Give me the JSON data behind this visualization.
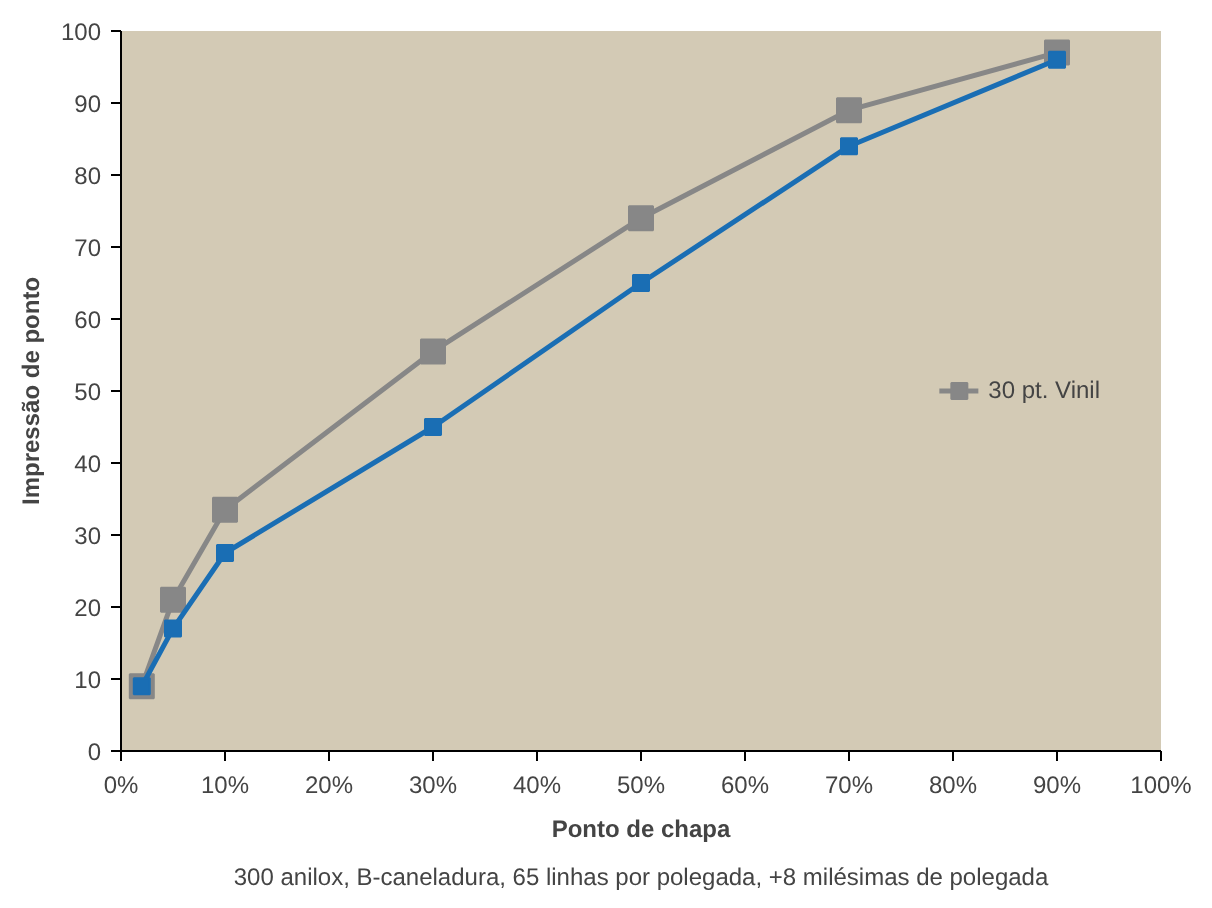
{
  "chart_data": {
    "type": "line",
    "xlabel": "Ponto de chapa",
    "ylabel": "Impressão de ponto",
    "x": [
      2,
      5,
      10,
      30,
      50,
      70,
      90
    ],
    "series": [
      {
        "name": "30 pt. Vinil",
        "color": "#878787",
        "values": [
          9,
          21,
          33.5,
          55.5,
          74,
          89,
          97
        ]
      },
      {
        "color": "#1a6eb4",
        "values": [
          9,
          17,
          27.5,
          45,
          65,
          84,
          96
        ]
      }
    ],
    "xlim": [
      0,
      100
    ],
    "xticks": [
      {
        "value": 0,
        "label": "0%"
      },
      {
        "value": 10,
        "label": "10%"
      },
      {
        "value": 20,
        "label": "20%"
      },
      {
        "value": 30,
        "label": "30%"
      },
      {
        "value": 40,
        "label": "40%"
      },
      {
        "value": 50,
        "label": "50%"
      },
      {
        "value": 60,
        "label": "60%"
      },
      {
        "value": 70,
        "label": "70%"
      },
      {
        "value": 80,
        "label": "80%"
      },
      {
        "value": 90,
        "label": "90%"
      },
      {
        "value": 100,
        "label": "100%"
      }
    ],
    "ylim": [
      0,
      100
    ],
    "yticks": [
      0,
      10,
      20,
      30,
      40,
      50,
      60,
      70,
      80,
      90,
      100
    ],
    "marker": "square",
    "line_style": "solid",
    "grid": false,
    "legend": "right",
    "annotations": [
      "300 anilox, B-caneladura, 65 linhas por polegada, +8 milésimas de polegada"
    ]
  }
}
